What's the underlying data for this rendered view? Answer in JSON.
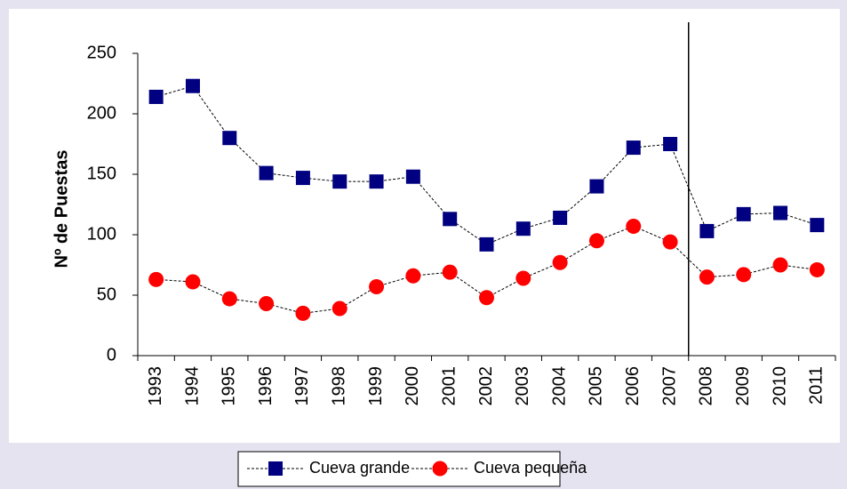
{
  "chart_data": {
    "type": "line",
    "y_label": "Nº de Puestas",
    "categories": [
      "1993",
      "1994",
      "1995",
      "1996",
      "1997",
      "1998",
      "1999",
      "2000",
      "2001",
      "2002",
      "2003",
      "2004",
      "2005",
      "2006",
      "2007",
      "2008",
      "2009",
      "2010",
      "2011"
    ],
    "series": [
      {
        "name": "Cueva grande",
        "color": "#000080",
        "marker": "square",
        "values": [
          214,
          223,
          180,
          151,
          147,
          144,
          144,
          148,
          113,
          92,
          105,
          114,
          140,
          172,
          175,
          103,
          117,
          118,
          108
        ]
      },
      {
        "name": "Cueva pequeña",
        "color": "#ff0000",
        "marker": "circle",
        "values": [
          63,
          61,
          47,
          43,
          35,
          39,
          57,
          66,
          69,
          48,
          64,
          77,
          95,
          107,
          94,
          65,
          67,
          75,
          71
        ]
      }
    ],
    "ylim": [
      0,
      250
    ],
    "yticks": [
      0,
      50,
      100,
      150,
      200,
      250
    ],
    "grid": false
  }
}
